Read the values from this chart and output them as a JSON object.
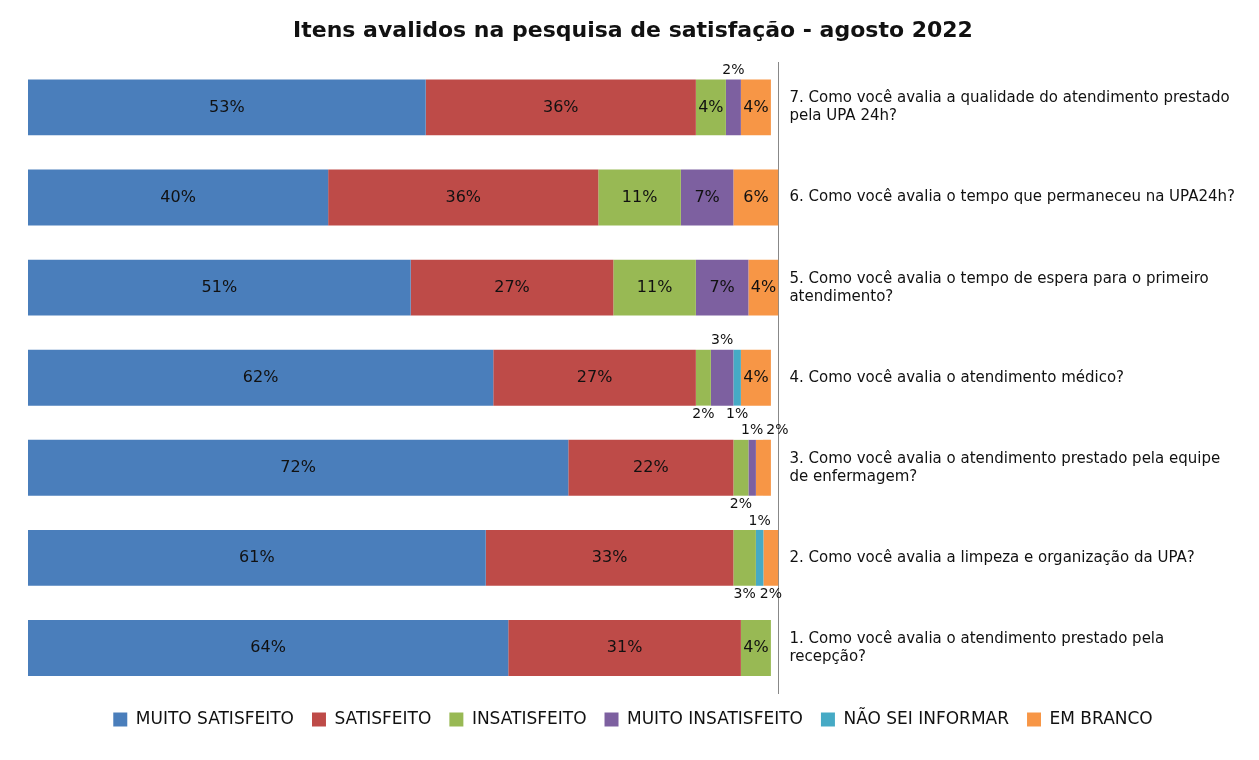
{
  "chart_data": {
    "type": "bar",
    "orientation": "horizontal",
    "stacked": true,
    "title": "Itens avalidos na pesquisa de satisfação - agosto 2022",
    "tick_labels": "y",
    "legend": "bottom",
    "grid": false,
    "categories": [
      "7. Como você avalia a qualidade do atendimento prestado pela UPA 24h?",
      "6. Como você avalia o tempo que permaneceu na UPA24h?",
      "5. Como você avalia o tempo de espera para o primeiro atendimento?",
      "4. Como você avalia o atendimento médico?",
      "3. Como você avalia o atendimento prestado pela equipe de enfermagem?",
      "2. Como você avalia a limpeza e organização da UPA?",
      "1. Como você avalia o atendimento prestado pela recepção?"
    ],
    "series": [
      {
        "name": "MUITO SATISFEITO",
        "color": "#4a7ebb",
        "values": [
          53,
          40,
          51,
          62,
          72,
          61,
          64
        ],
        "value_labels": [
          "53%",
          "40%",
          "51%",
          "62%",
          "72%",
          "61%",
          "64%"
        ]
      },
      {
        "name": "SATISFEITO",
        "color": "#be4b48",
        "values": [
          36,
          36,
          27,
          27,
          22,
          33,
          31
        ],
        "value_labels": [
          "36%",
          "36%",
          "27%",
          "27%",
          "22%",
          "33%",
          "31%"
        ]
      },
      {
        "name": "INSATISFEITO",
        "color": "#98b954",
        "values": [
          4,
          11,
          11,
          2,
          2,
          3,
          4
        ],
        "value_labels": [
          "4%",
          "11%",
          "11%",
          "2%",
          "2%",
          "3%",
          "4%"
        ]
      },
      {
        "name": "MUITO INSATISFEITO",
        "color": "#7d60a0",
        "values": [
          2,
          7,
          7,
          3,
          1,
          null,
          null
        ],
        "value_labels": [
          "2%",
          "7%",
          "7%",
          "3%",
          "1%",
          null,
          null
        ]
      },
      {
        "name": "NÃO SEI INFORMAR",
        "color": "#46aac5",
        "values": [
          null,
          null,
          null,
          1,
          null,
          1,
          null
        ],
        "value_labels": [
          null,
          null,
          null,
          "1%",
          null,
          "1%",
          null
        ]
      },
      {
        "name": "EM BRANCO",
        "color": "#f79646",
        "values": [
          4,
          6,
          4,
          4,
          2,
          2,
          null
        ],
        "value_labels": [
          "4%",
          "6%",
          "4%",
          "4%",
          "2%",
          "2%",
          null
        ]
      }
    ]
  }
}
